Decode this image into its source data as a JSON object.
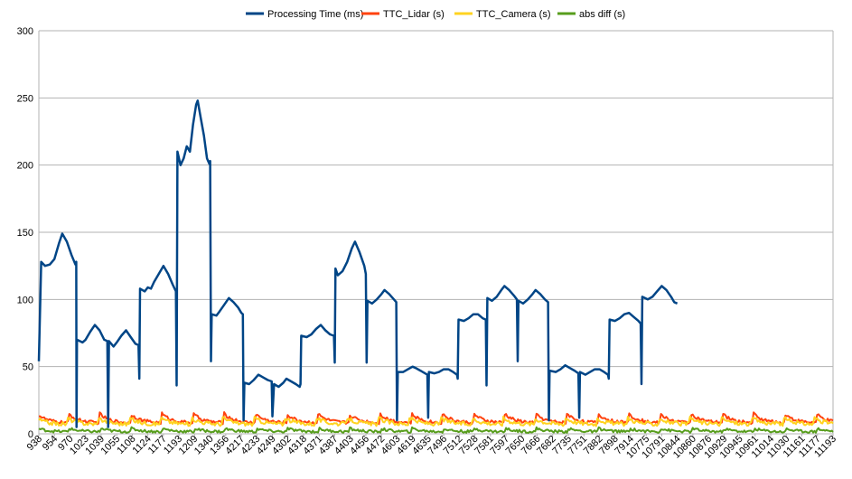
{
  "chart_data": {
    "type": "line",
    "grid": true,
    "legend_position": "top",
    "ylim": [
      0,
      300
    ],
    "yticks": [
      0,
      50,
      100,
      150,
      200,
      250,
      300
    ],
    "x_tick_labels": [
      "938",
      "954",
      "970",
      "1023",
      "1039",
      "1055",
      "1108",
      "1124",
      "1177",
      "1193",
      "1209",
      "1340",
      "1356",
      "4217",
      "4233",
      "4249",
      "4302",
      "4318",
      "4371",
      "4387",
      "4403",
      "4456",
      "4472",
      "4603",
      "4619",
      "4635",
      "7496",
      "7512",
      "7528",
      "7581",
      "7597",
      "7650",
      "7666",
      "7682",
      "7735",
      "7751",
      "7882",
      "7898",
      "7914",
      "10775",
      "10791",
      "10844",
      "10860",
      "10876",
      "10929",
      "10945",
      "10961",
      "11014",
      "11030",
      "11161",
      "11177",
      "11193"
    ],
    "series": [
      {
        "name": "Processing Time (ms)",
        "color": "#004586",
        "width": 2.5,
        "points": [
          [
            0,
            54
          ],
          [
            0.15,
            128
          ],
          [
            0.4,
            125
          ],
          [
            0.7,
            126
          ],
          [
            1.0,
            130
          ],
          [
            1.3,
            142
          ],
          [
            1.5,
            149
          ],
          [
            1.8,
            143
          ],
          [
            2.1,
            133
          ],
          [
            2.35,
            126
          ],
          [
            2.4,
            128
          ],
          [
            2.42,
            5
          ],
          [
            2.45,
            70
          ],
          [
            2.8,
            68
          ],
          [
            3.0,
            70
          ],
          [
            3.3,
            76
          ],
          [
            3.6,
            81
          ],
          [
            3.9,
            77
          ],
          [
            4.2,
            70
          ],
          [
            4.4,
            69
          ],
          [
            4.45,
            5
          ],
          [
            4.5,
            69
          ],
          [
            4.8,
            65
          ],
          [
            5.0,
            68
          ],
          [
            5.3,
            73
          ],
          [
            5.6,
            77
          ],
          [
            5.9,
            72
          ],
          [
            6.2,
            67
          ],
          [
            6.4,
            66
          ],
          [
            6.45,
            41
          ],
          [
            6.5,
            108
          ],
          [
            6.8,
            106
          ],
          [
            7.0,
            109
          ],
          [
            7.2,
            108
          ],
          [
            7.4,
            113
          ],
          [
            7.7,
            119
          ],
          [
            8.0,
            125
          ],
          [
            8.3,
            119
          ],
          [
            8.6,
            111
          ],
          [
            8.8,
            106
          ],
          [
            8.85,
            36
          ],
          [
            8.9,
            210
          ],
          [
            9.1,
            200
          ],
          [
            9.3,
            205
          ],
          [
            9.5,
            214
          ],
          [
            9.7,
            210
          ],
          [
            9.9,
            230
          ],
          [
            10.1,
            245
          ],
          [
            10.2,
            248
          ],
          [
            10.4,
            235
          ],
          [
            10.6,
            222
          ],
          [
            10.8,
            205
          ],
          [
            10.95,
            201
          ],
          [
            11.0,
            203
          ],
          [
            11.05,
            54
          ],
          [
            11.1,
            89
          ],
          [
            11.4,
            88
          ],
          [
            11.6,
            91
          ],
          [
            11.9,
            96
          ],
          [
            12.2,
            101
          ],
          [
            12.5,
            98
          ],
          [
            12.8,
            94
          ],
          [
            13.0,
            90
          ],
          [
            13.1,
            89
          ],
          [
            13.15,
            10
          ],
          [
            13.2,
            38
          ],
          [
            13.5,
            37
          ],
          [
            13.8,
            40
          ],
          [
            14.1,
            44
          ],
          [
            14.4,
            42
          ],
          [
            14.7,
            40
          ],
          [
            14.95,
            39
          ],
          [
            15.0,
            13
          ],
          [
            15.1,
            37
          ],
          [
            15.4,
            35
          ],
          [
            15.7,
            38
          ],
          [
            15.9,
            41
          ],
          [
            16.2,
            39
          ],
          [
            16.5,
            37
          ],
          [
            16.75,
            35
          ],
          [
            16.8,
            37
          ],
          [
            16.85,
            73
          ],
          [
            17.2,
            72
          ],
          [
            17.5,
            74
          ],
          [
            17.8,
            78
          ],
          [
            18.1,
            81
          ],
          [
            18.4,
            77
          ],
          [
            18.7,
            74
          ],
          [
            18.95,
            73
          ],
          [
            19.0,
            53
          ],
          [
            19.05,
            123
          ],
          [
            19.2,
            118
          ],
          [
            19.5,
            121
          ],
          [
            19.8,
            128
          ],
          [
            20.1,
            138
          ],
          [
            20.3,
            143
          ],
          [
            20.6,
            135
          ],
          [
            20.9,
            125
          ],
          [
            21.0,
            119
          ],
          [
            21.05,
            53
          ],
          [
            21.1,
            99
          ],
          [
            21.4,
            97
          ],
          [
            21.7,
            100
          ],
          [
            22.0,
            104
          ],
          [
            22.2,
            107
          ],
          [
            22.5,
            104
          ],
          [
            22.8,
            100
          ],
          [
            22.95,
            98
          ],
          [
            23.0,
            10
          ],
          [
            23.05,
            46
          ],
          [
            23.4,
            46
          ],
          [
            23.7,
            48
          ],
          [
            24.0,
            50
          ],
          [
            24.2,
            49
          ],
          [
            24.5,
            47
          ],
          [
            24.8,
            45
          ],
          [
            24.95,
            44
          ],
          [
            25.0,
            12
          ],
          [
            25.05,
            46
          ],
          [
            25.4,
            45
          ],
          [
            25.7,
            46
          ],
          [
            26.0,
            48
          ],
          [
            26.3,
            48
          ],
          [
            26.6,
            46
          ],
          [
            26.85,
            44
          ],
          [
            26.9,
            41
          ],
          [
            26.95,
            85
          ],
          [
            27.3,
            84
          ],
          [
            27.6,
            86
          ],
          [
            27.9,
            89
          ],
          [
            28.2,
            89
          ],
          [
            28.5,
            86
          ],
          [
            28.7,
            85
          ],
          [
            28.75,
            36
          ],
          [
            28.8,
            101
          ],
          [
            29.1,
            99
          ],
          [
            29.4,
            102
          ],
          [
            29.7,
            107
          ],
          [
            29.9,
            110
          ],
          [
            30.2,
            107
          ],
          [
            30.5,
            103
          ],
          [
            30.7,
            100
          ],
          [
            30.75,
            54
          ],
          [
            30.8,
            99
          ],
          [
            31.1,
            97
          ],
          [
            31.4,
            100
          ],
          [
            31.7,
            104
          ],
          [
            31.9,
            107
          ],
          [
            32.2,
            104
          ],
          [
            32.5,
            100
          ],
          [
            32.7,
            98
          ],
          [
            32.75,
            10
          ],
          [
            32.8,
            47
          ],
          [
            33.2,
            46
          ],
          [
            33.5,
            48
          ],
          [
            33.8,
            51
          ],
          [
            34.1,
            49
          ],
          [
            34.4,
            47
          ],
          [
            34.65,
            45
          ],
          [
            34.7,
            12
          ],
          [
            34.75,
            46
          ],
          [
            35.1,
            44
          ],
          [
            35.4,
            46
          ],
          [
            35.7,
            48
          ],
          [
            36.0,
            48
          ],
          [
            36.3,
            46
          ],
          [
            36.55,
            44
          ],
          [
            36.6,
            41
          ],
          [
            36.65,
            85
          ],
          [
            37.0,
            84
          ],
          [
            37.3,
            86
          ],
          [
            37.6,
            89
          ],
          [
            37.9,
            90
          ],
          [
            38.2,
            87
          ],
          [
            38.5,
            84
          ],
          [
            38.65,
            82
          ],
          [
            38.7,
            37
          ],
          [
            38.75,
            102
          ],
          [
            39.1,
            100
          ],
          [
            39.4,
            102
          ],
          [
            39.7,
            106
          ],
          [
            40.0,
            110
          ],
          [
            40.3,
            107
          ],
          [
            40.6,
            102
          ],
          [
            40.8,
            98
          ],
          [
            41.0,
            97
          ]
        ]
      },
      {
        "name": "TTC_Lidar (s)",
        "color": "#ff420e",
        "width": 2,
        "pattern": {
          "base": 8,
          "amplitude": 7,
          "noise": 1.2,
          "start": 0.1
        }
      },
      {
        "name": "TTC_Camera (s)",
        "color": "#ffd320",
        "width": 2,
        "pattern": {
          "base": 7,
          "amplitude": 5,
          "noise": 1.5,
          "start": 0.2
        }
      },
      {
        "name": "abs diff (s)",
        "color": "#579d1c",
        "width": 2,
        "pattern": {
          "base": 1.5,
          "amplitude": 2.5,
          "noise": 1.0,
          "start": 0.05
        }
      }
    ]
  }
}
